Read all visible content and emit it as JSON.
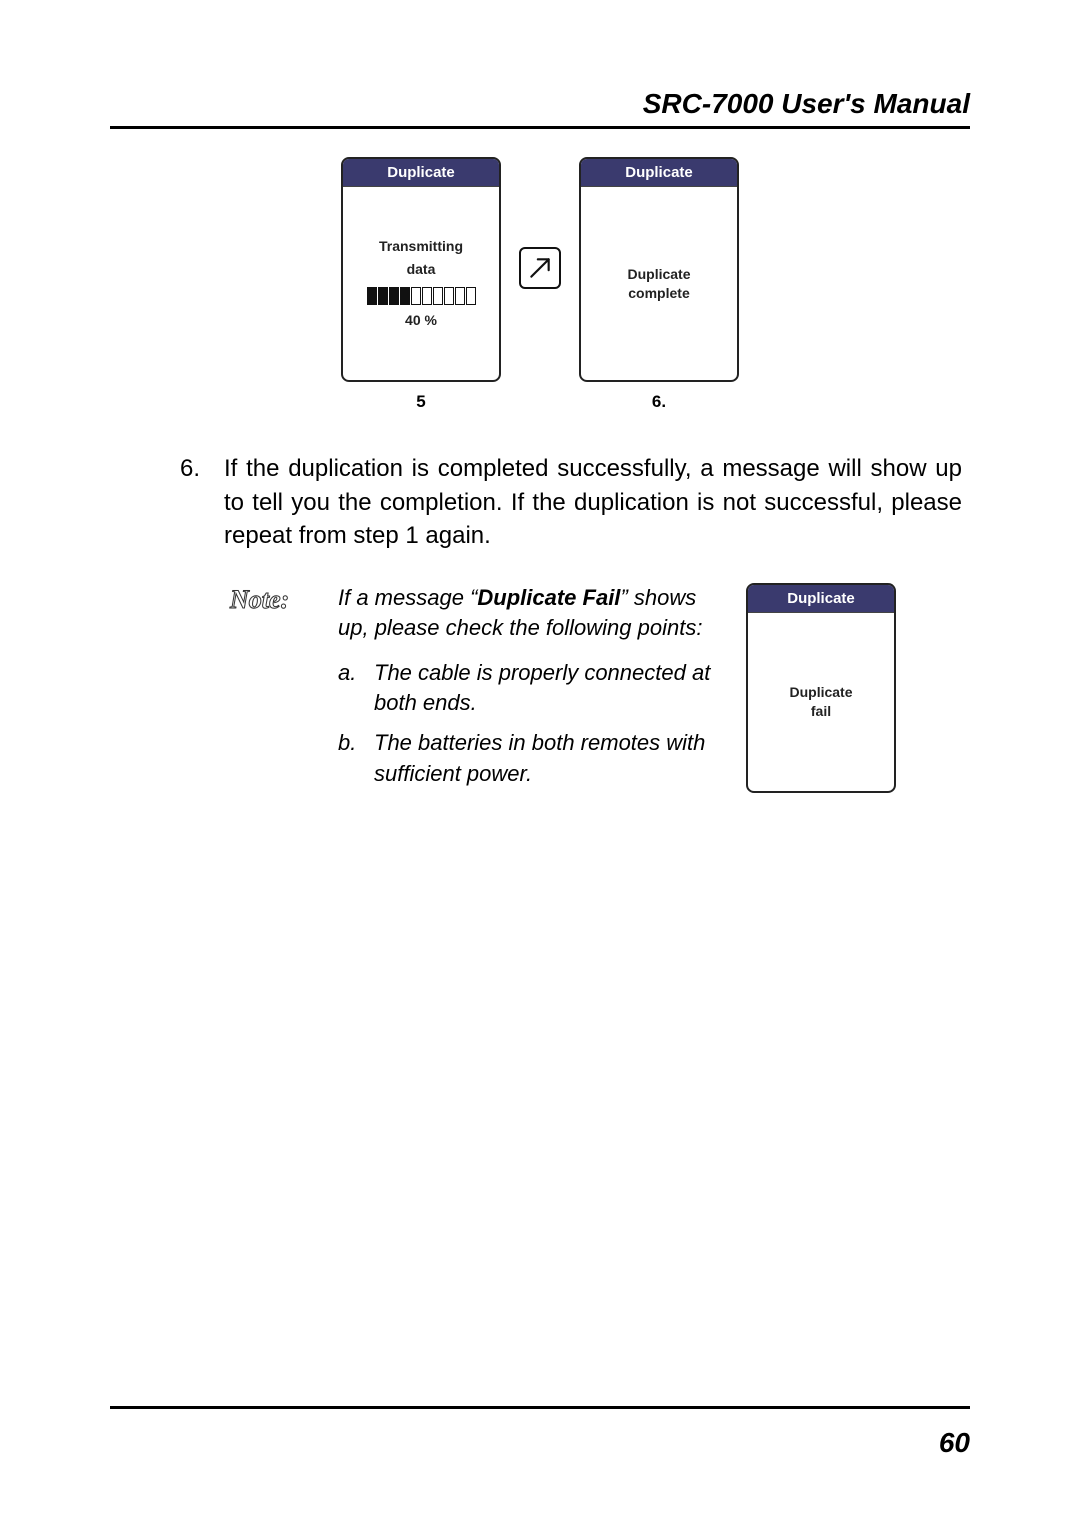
{
  "header": {
    "title": "SRC-7000 User's Manual"
  },
  "figures": {
    "screen_a": {
      "titlebar": "Duplicate",
      "line1": "Transmitting",
      "line2": "data",
      "progress": {
        "segments_total": 10,
        "segments_filled": 4,
        "pct_label": "40 %",
        "filled_color": "#111111",
        "empty_color": "#ffffff",
        "border_color": "#111111"
      },
      "caption": "5"
    },
    "screen_b": {
      "titlebar": "Duplicate",
      "line1": "Duplicate",
      "line2": "complete",
      "caption": "6."
    },
    "titlebar_bg": "#3a3a6e",
    "titlebar_fg": "#ffffff",
    "screen_border": "#222222"
  },
  "step6": {
    "number": "6.",
    "text": "If the duplication is completed successfully, a message will show up to tell you the completion. If the duplication is not successful, please repeat from step 1 again."
  },
  "note": {
    "label": "Note:",
    "intro_prefix": "If a message “",
    "intro_bold": "Duplicate Fail",
    "intro_suffix": "” shows up, please check the following points:",
    "items": [
      {
        "marker": "a.",
        "text": "The cable is properly connected at both ends."
      },
      {
        "marker": "b.",
        "text": "The batteries in both remotes with sufficient power."
      }
    ],
    "screen": {
      "titlebar": "Duplicate",
      "line1": "Duplicate",
      "line2": "fail"
    }
  },
  "page_number": "60"
}
